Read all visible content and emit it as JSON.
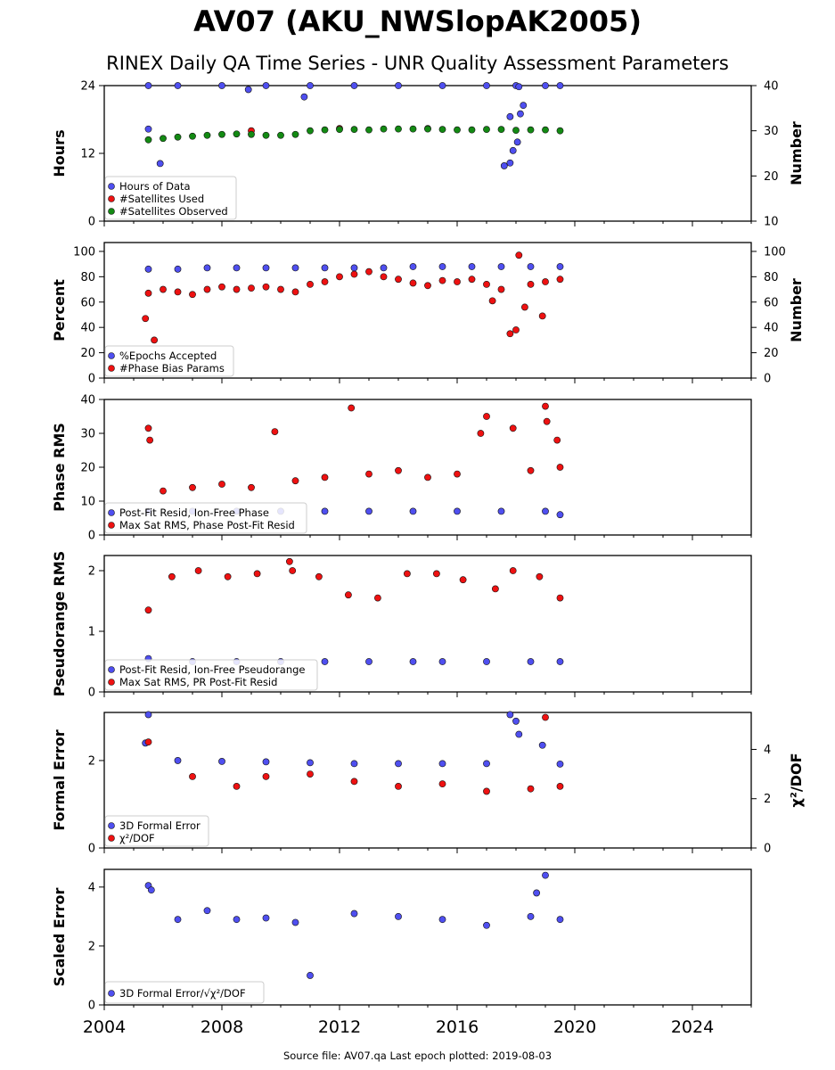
{
  "title": "AV07 (AKU_NWSlopAK2005)",
  "subtitle": "RINEX Daily QA Time Series - UNR Quality Assessment Parameters",
  "footer": "Source file: AV07.qa Last epoch plotted: 2019-08-03",
  "colors": {
    "blue": "#4f4ff0",
    "red": "#ee1111",
    "green": "#138a13",
    "edge": "#111111"
  },
  "x_axis": {
    "range": [
      2004.0,
      2026.0
    ],
    "ticks": [
      2004,
      2008,
      2012,
      2016,
      2020,
      2024
    ],
    "tick_labels": [
      "2004",
      "2008",
      "2012",
      "2016",
      "2020",
      "2024"
    ]
  },
  "chart_data": [
    {
      "type": "scatter",
      "ylabel": "Hours",
      "ylim": [
        0,
        24
      ],
      "yticks": [
        0,
        12,
        24
      ],
      "ytick_labels": [
        "0",
        "12",
        "24"
      ],
      "y2label": "Number",
      "y2lim": [
        10,
        40
      ],
      "y2ticks": [
        10,
        20,
        30,
        40
      ],
      "y2tick_labels": [
        "10",
        "20",
        "30",
        "40"
      ],
      "legend": "lower-left",
      "series": [
        {
          "name": "Hours of Data",
          "color": "blue",
          "axis": "left",
          "x": [
            2005.5,
            2006.5,
            2008.0,
            2009.5,
            2011.0,
            2012.5,
            2014.0,
            2015.5,
            2017.0,
            2018.0,
            2019.0,
            2019.5,
            2005.5,
            2005.9,
            2010.8,
            2008.9,
            2017.6,
            2017.8,
            2017.9,
            2018.05,
            2018.15,
            2018.25,
            2017.8,
            2018.1
          ],
          "y": [
            24,
            24,
            24,
            24,
            24,
            24,
            24,
            24,
            24,
            24,
            24,
            24,
            16.3,
            10.2,
            22.0,
            23.3,
            9.8,
            10.3,
            12.5,
            14.0,
            19.0,
            20.5,
            18.5,
            23.8
          ]
        },
        {
          "name": "#Satellites Used",
          "color": "red",
          "axis": "right",
          "x": [
            2009.0,
            2012.0,
            2015.0
          ],
          "y": [
            30.0,
            30.5,
            30.5
          ]
        },
        {
          "name": "#Satellites Observed",
          "color": "green",
          "axis": "right",
          "x": [
            2005.5,
            2006.0,
            2006.5,
            2007.0,
            2007.5,
            2008.0,
            2008.5,
            2009.0,
            2009.5,
            2010.0,
            2010.5,
            2011.0,
            2011.5,
            2012.0,
            2012.5,
            2013.0,
            2013.5,
            2014.0,
            2014.5,
            2015.0,
            2015.5,
            2016.0,
            2016.5,
            2017.0,
            2017.5,
            2018.0,
            2018.5,
            2019.0,
            2019.5
          ],
          "y": [
            28.0,
            28.3,
            28.6,
            28.8,
            29.0,
            29.2,
            29.3,
            29.2,
            29.0,
            29.0,
            29.2,
            30.0,
            30.2,
            30.3,
            30.3,
            30.2,
            30.4,
            30.4,
            30.4,
            30.4,
            30.3,
            30.2,
            30.2,
            30.3,
            30.3,
            30.1,
            30.2,
            30.2,
            30.0
          ]
        }
      ]
    },
    {
      "type": "scatter",
      "ylabel": "Percent",
      "ylim": [
        0,
        107
      ],
      "yticks": [
        0,
        20,
        40,
        60,
        80,
        100
      ],
      "ytick_labels": [
        "0",
        "20",
        "40",
        "60",
        "80",
        "100"
      ],
      "y2label": "Number",
      "y2lim": [
        0,
        107
      ],
      "y2ticks": [
        0,
        20,
        40,
        60,
        80,
        100
      ],
      "y2tick_labels": [
        "0",
        "20",
        "40",
        "60",
        "80",
        "100"
      ],
      "legend": "lower-left",
      "series": [
        {
          "name": "%Epochs Accepted",
          "color": "blue",
          "axis": "left",
          "x": [
            2005.5,
            2006.5,
            2007.5,
            2008.5,
            2009.5,
            2010.5,
            2011.5,
            2012.5,
            2013.5,
            2014.5,
            2015.5,
            2016.5,
            2017.5,
            2018.5,
            2019.5
          ],
          "y": [
            86,
            86,
            87,
            87,
            87,
            87,
            87,
            87,
            87,
            88,
            88,
            88,
            88,
            88,
            88
          ]
        },
        {
          "name": "#Phase Bias Params",
          "color": "red",
          "axis": "right",
          "x": [
            2005.4,
            2005.5,
            2005.7,
            2006.0,
            2006.5,
            2007.0,
            2007.5,
            2008.0,
            2008.5,
            2009.0,
            2009.5,
            2010.0,
            2010.5,
            2011.0,
            2011.5,
            2012.0,
            2012.5,
            2013.0,
            2013.5,
            2014.0,
            2014.5,
            2015.0,
            2015.5,
            2016.0,
            2016.5,
            2017.0,
            2017.2,
            2017.5,
            2017.8,
            2018.0,
            2018.1,
            2018.3,
            2018.5,
            2018.9,
            2019.0,
            2019.5
          ],
          "y": [
            47,
            67,
            30,
            70,
            68,
            66,
            70,
            72,
            70,
            71,
            72,
            70,
            68,
            74,
            76,
            80,
            82,
            84,
            80,
            78,
            75,
            73,
            77,
            76,
            78,
            74,
            61,
            70,
            35,
            38,
            97,
            56,
            74,
            49,
            76,
            78
          ]
        }
      ]
    },
    {
      "type": "scatter",
      "ylabel": "Phase RMS",
      "ylim": [
        0,
        40
      ],
      "yticks": [
        0,
        10,
        20,
        30,
        40
      ],
      "ytick_labels": [
        "0",
        "10",
        "20",
        "30",
        "40"
      ],
      "legend": "lower-left",
      "series": [
        {
          "name": "Post-Fit Resid, Ion-Free Phase",
          "color": "blue",
          "axis": "left",
          "x": [
            2005.5,
            2007.0,
            2008.5,
            2010.0,
            2011.5,
            2013.0,
            2014.5,
            2016.0,
            2017.5,
            2019.0,
            2019.5
          ],
          "y": [
            7,
            7,
            7,
            7,
            7,
            7,
            7,
            7,
            7,
            7,
            6
          ]
        },
        {
          "name": "Max Sat RMS, Phase Post-Fit Resid",
          "color": "red",
          "axis": "left",
          "x": [
            2005.5,
            2005.55,
            2006.0,
            2007.0,
            2008.0,
            2009.0,
            2009.8,
            2010.5,
            2011.5,
            2012.4,
            2013.0,
            2014.0,
            2015.0,
            2016.0,
            2016.8,
            2017.0,
            2017.9,
            2018.5,
            2019.0,
            2019.05,
            2019.4,
            2019.5
          ],
          "y": [
            31.5,
            28,
            13,
            14,
            15,
            14,
            30.5,
            16,
            17,
            37.5,
            18,
            19,
            17,
            18,
            30,
            35,
            31.5,
            19,
            38,
            33.5,
            28,
            20
          ]
        }
      ]
    },
    {
      "type": "scatter",
      "ylabel": "Pseudorange RMS",
      "ylim": [
        0,
        2.25
      ],
      "yticks": [
        0,
        1,
        2
      ],
      "ytick_labels": [
        "0",
        "1",
        "2"
      ],
      "legend": "lower-left",
      "series": [
        {
          "name": "Post-Fit Resid, Ion-Free Pseudorange",
          "color": "blue",
          "axis": "left",
          "x": [
            2005.5,
            2007.0,
            2008.5,
            2010.0,
            2011.5,
            2013.0,
            2014.5,
            2015.5,
            2017.0,
            2018.5,
            2019.5
          ],
          "y": [
            0.55,
            0.5,
            0.5,
            0.5,
            0.5,
            0.5,
            0.5,
            0.5,
            0.5,
            0.5,
            0.5
          ]
        },
        {
          "name": "Max Sat RMS, PR Post-Fit Resid",
          "color": "red",
          "axis": "left",
          "x": [
            2005.5,
            2006.3,
            2007.2,
            2008.2,
            2009.2,
            2010.3,
            2010.4,
            2011.3,
            2012.3,
            2013.3,
            2014.3,
            2015.3,
            2016.2,
            2017.3,
            2017.9,
            2018.8,
            2019.5
          ],
          "y": [
            1.35,
            1.9,
            2.0,
            1.9,
            1.95,
            2.15,
            2.0,
            1.9,
            1.6,
            1.55,
            1.95,
            1.95,
            1.85,
            1.7,
            2.0,
            1.9,
            1.55
          ]
        }
      ]
    },
    {
      "type": "scatter",
      "ylabel": "Formal Error",
      "ylim": [
        0,
        3.1
      ],
      "yticks": [
        0,
        2
      ],
      "ytick_labels": [
        "0",
        "2"
      ],
      "y2label": "χ²/DOF",
      "y2lim": [
        0,
        5.5
      ],
      "y2ticks": [
        0,
        2,
        4
      ],
      "y2tick_labels": [
        "0",
        "2",
        "4"
      ],
      "legend": "lower-left",
      "series": [
        {
          "name": "3D Formal Error",
          "color": "blue",
          "axis": "left",
          "x": [
            2005.4,
            2005.5,
            2006.5,
            2008.0,
            2009.5,
            2011.0,
            2012.5,
            2014.0,
            2015.5,
            2017.0,
            2017.8,
            2018.0,
            2018.1,
            2018.9,
            2019.5
          ],
          "y": [
            2.4,
            3.05,
            2.0,
            1.98,
            1.97,
            1.95,
            1.93,
            1.93,
            1.93,
            1.93,
            3.05,
            2.9,
            2.6,
            2.35,
            1.92
          ]
        },
        {
          "name": "χ²/DOF",
          "color": "red",
          "axis": "right",
          "x": [
            2005.5,
            2007.0,
            2008.5,
            2009.5,
            2011.0,
            2012.5,
            2014.0,
            2015.5,
            2017.0,
            2018.5,
            2019.0,
            2019.5
          ],
          "y": [
            4.3,
            2.9,
            2.5,
            2.9,
            3.0,
            2.7,
            2.5,
            2.6,
            2.3,
            2.4,
            5.3,
            2.5
          ]
        }
      ]
    },
    {
      "type": "scatter",
      "ylabel": "Scaled Error",
      "ylim": [
        0,
        4.6
      ],
      "yticks": [
        0,
        2,
        4
      ],
      "ytick_labels": [
        "0",
        "2",
        "4"
      ],
      "legend": "lower-left",
      "series": [
        {
          "name": "3D Formal Error/√χ²/DOF",
          "color": "blue",
          "axis": "left",
          "x": [
            2005.5,
            2005.6,
            2006.5,
            2007.5,
            2008.5,
            2009.5,
            2010.5,
            2011.0,
            2012.5,
            2014.0,
            2015.5,
            2017.0,
            2018.5,
            2018.7,
            2019.0,
            2019.5
          ],
          "y": [
            4.05,
            3.9,
            2.9,
            3.2,
            2.9,
            2.95,
            2.8,
            1.0,
            3.1,
            3.0,
            2.9,
            2.7,
            3.0,
            3.8,
            4.4,
            2.9
          ]
        }
      ]
    }
  ]
}
